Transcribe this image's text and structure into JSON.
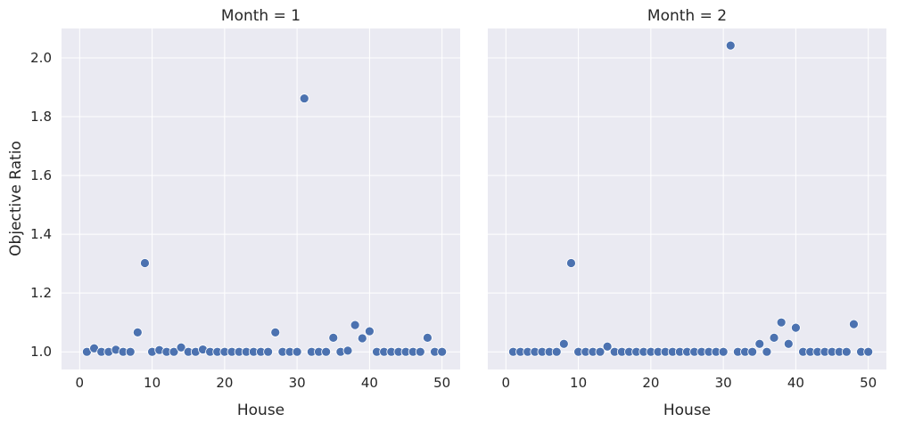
{
  "chart_data": {
    "type": "scatter",
    "ylabel": "Objective Ratio",
    "ylim": [
      0.94,
      2.1
    ],
    "xlim": [
      -2.5,
      52.5
    ],
    "y_ticks": [
      "1.0",
      "1.2",
      "1.4",
      "1.6",
      "1.8",
      "2.0"
    ],
    "x_ticks": [
      "0",
      "10",
      "20",
      "30",
      "40",
      "50"
    ],
    "grid": true,
    "background": "#eaeaf2",
    "marker_color": "#4c72b0",
    "panels": [
      {
        "title": "Month = 1",
        "xlabel": "House",
        "x": [
          1,
          2,
          3,
          4,
          5,
          6,
          7,
          8,
          9,
          10,
          11,
          12,
          13,
          14,
          15,
          16,
          17,
          18,
          19,
          20,
          21,
          22,
          23,
          24,
          25,
          26,
          27,
          28,
          29,
          30,
          31,
          32,
          33,
          34,
          35,
          36,
          37,
          38,
          39,
          40,
          41,
          42,
          43,
          44,
          45,
          46,
          47,
          48,
          49,
          50
        ],
        "y": [
          1.0,
          1.012,
          1.0,
          1.0,
          1.007,
          1.0,
          1.0,
          1.066,
          1.302,
          1.0,
          1.006,
          1.0,
          1.0,
          1.015,
          1.0,
          1.0,
          1.008,
          1.0,
          1.0,
          1.0,
          1.0,
          1.0,
          1.0,
          1.0,
          1.0,
          1.0,
          1.066,
          1.0,
          1.0,
          1.0,
          1.862,
          1.0,
          1.0,
          1.0,
          1.048,
          1.0,
          1.004,
          1.091,
          1.046,
          1.07,
          1.0,
          1.0,
          1.0,
          1.0,
          1.0,
          1.0,
          1.0,
          1.048,
          1.0,
          1.0
        ]
      },
      {
        "title": "Month = 2",
        "xlabel": "House",
        "x": [
          1,
          2,
          3,
          4,
          5,
          6,
          7,
          8,
          9,
          10,
          11,
          12,
          13,
          14,
          15,
          16,
          17,
          18,
          19,
          20,
          21,
          22,
          23,
          24,
          25,
          26,
          27,
          28,
          29,
          30,
          31,
          32,
          33,
          34,
          35,
          36,
          37,
          38,
          39,
          40,
          41,
          42,
          43,
          44,
          45,
          46,
          47,
          48,
          49,
          50
        ],
        "y": [
          1.0,
          1.0,
          1.0,
          1.0,
          1.0,
          1.0,
          1.0,
          1.027,
          1.302,
          1.0,
          1.0,
          1.0,
          1.0,
          1.018,
          1.0,
          1.0,
          1.0,
          1.0,
          1.0,
          1.0,
          1.0,
          1.0,
          1.0,
          1.0,
          1.0,
          1.0,
          1.0,
          1.0,
          1.0,
          1.0,
          2.042,
          1.0,
          1.0,
          1.0,
          1.027,
          1.0,
          1.048,
          1.1,
          1.027,
          1.082,
          1.0,
          1.0,
          1.0,
          1.0,
          1.0,
          1.0,
          1.0,
          1.094,
          1.0,
          1.0
        ]
      }
    ]
  }
}
